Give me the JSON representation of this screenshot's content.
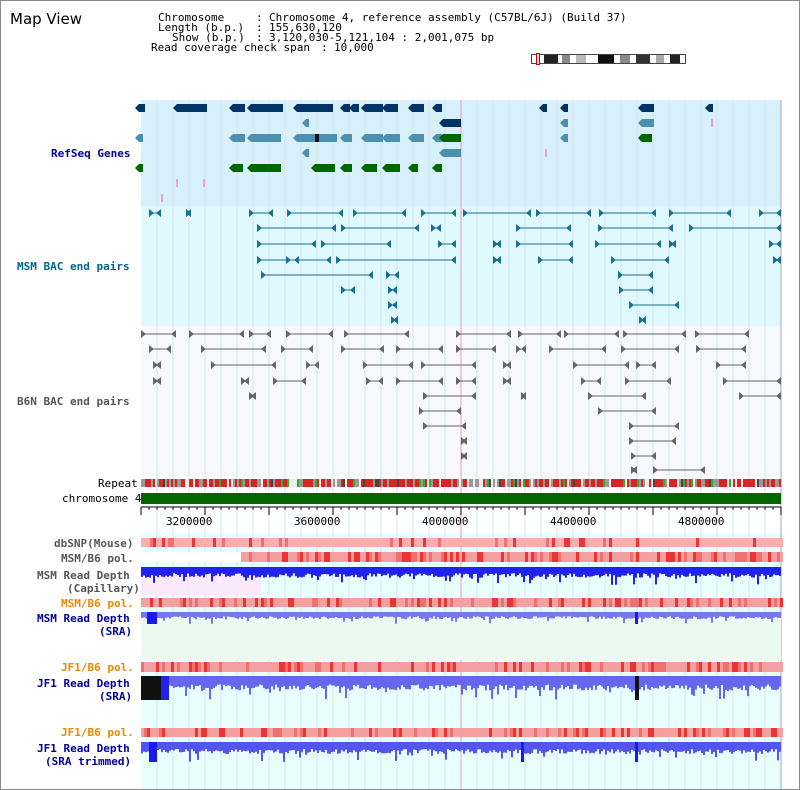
{
  "title": "Map View",
  "info": {
    "chromosome_label": "Chromosome",
    "chromosome_value": "Chromosome 4, reference assembly (C57BL/6J) (Build 37)",
    "length_label": "Length (b.p.)",
    "length_value": "155,630,120",
    "show_label": "Show (b.p.)",
    "show_value": "3,120,030-5,121,104 : 2,001,075 bp",
    "coverage_label": "Read coverage check span",
    "coverage_value": "10,000",
    "sep": ":"
  },
  "tracks": {
    "refseq": "RefSeq Genes",
    "msm_bac": "MSM BAC end pairs",
    "b6n_bac": "B6N BAC end pairs",
    "repeat": "Repeat",
    "chromosome": "chromosome 4",
    "dbsnp": "dbSNP(Mouse)",
    "msm_b6_pol": "MSM/B6 pol.",
    "msm_depth_cap_1": "MSM Read Depth",
    "msm_depth_cap_2": "(Capillary)",
    "msm_b6_pol2": "MSM/B6 pol.",
    "msm_depth_sra_1": "MSM Read Depth",
    "msm_depth_sra_2": "(SRA)",
    "jf1_b6_pol": "JF1/B6 pol.",
    "jf1_depth_sra_1": "JF1 Read Depth",
    "jf1_depth_sra_2": "(SRA)",
    "jf1_b6_pol2": "JF1/B6 pol.",
    "jf1_depth_trim_1": "JF1 Read Depth",
    "jf1_depth_trim_2": "(SRA trimmed)"
  },
  "axis_ticks": [
    "3200000",
    "3600000",
    "4000000",
    "4400000",
    "4800000"
  ],
  "colors": {
    "refseq_bg": "#d8f0fa",
    "msm_bg": "#e0f8ff",
    "b6n_bg": "#f8f8ff",
    "chromosome": "#006600",
    "depth_blue": "#1a1aee",
    "pol_red": "#ee3333",
    "label_blue": "#000099",
    "label_orange": "#ee8800",
    "label_teal": "#006688"
  }
}
